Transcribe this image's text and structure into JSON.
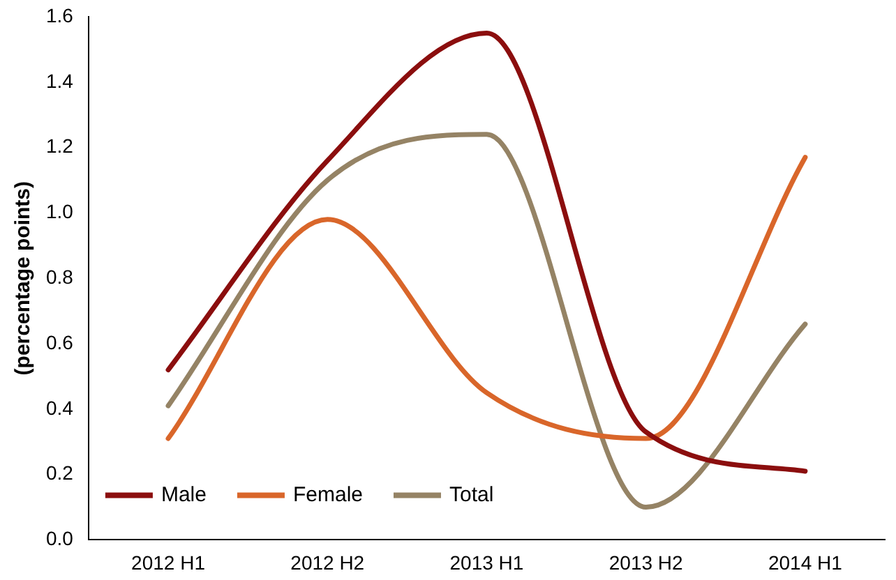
{
  "chart_data": {
    "type": "line",
    "ylabel": "(percentage points)",
    "categories": [
      "2012 H1",
      "2012 H2",
      "2013 H1",
      "2013 H2",
      "2014 H1"
    ],
    "series": [
      {
        "name": "Male",
        "color": "#8b0e0e",
        "values": [
          0.52,
          1.16,
          1.55,
          0.33,
          0.21
        ]
      },
      {
        "name": "Female",
        "color": "#d9662a",
        "values": [
          0.31,
          0.98,
          0.45,
          0.31,
          1.17
        ]
      },
      {
        "name": "Total",
        "color": "#958365",
        "values": [
          0.41,
          1.1,
          1.24,
          0.1,
          0.66
        ]
      }
    ],
    "ylim": [
      0,
      1.6
    ],
    "yticks": [
      {
        "value": 0,
        "label": "0.0"
      },
      {
        "value": 0.2,
        "label": "0.2"
      },
      {
        "value": 0.4,
        "label": "0.4"
      },
      {
        "value": 0.6,
        "label": "0.6"
      },
      {
        "value": 0.8,
        "label": "0.8"
      },
      {
        "value": 1,
        "label": "1.0"
      },
      {
        "value": 1.2,
        "label": "1.2"
      },
      {
        "value": 1.4,
        "label": "1.4"
      },
      {
        "value": 1.6,
        "label": "1.6"
      }
    ],
    "grid": false,
    "legend": "bottom left",
    "marker": "none",
    "line_style": "solid"
  }
}
